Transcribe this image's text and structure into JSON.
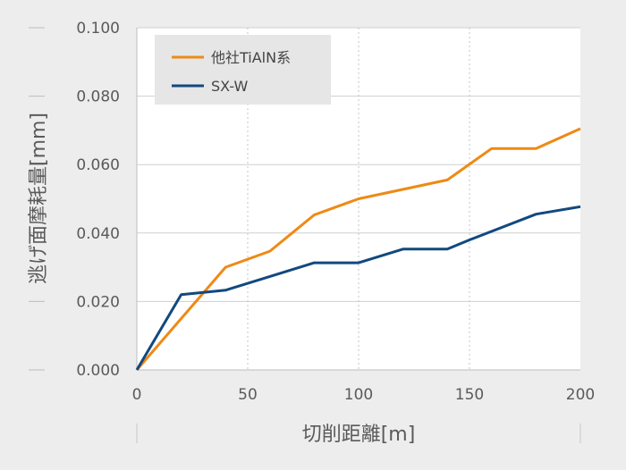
{
  "chart_data": {
    "type": "line",
    "xlabel": "切削距離[m]",
    "ylabel": "逃げ面摩耗量[mm]",
    "xlim": [
      0,
      200
    ],
    "ylim": [
      0,
      0.1
    ],
    "x_ticks": [
      "0",
      "50",
      "100",
      "150",
      "200"
    ],
    "y_ticks": [
      "0.000",
      "0.020",
      "0.040",
      "0.060",
      "0.080",
      "0.100"
    ],
    "grid": true,
    "legend_position": "top-left",
    "series": [
      {
        "name": "他社TiAlN系",
        "color": "#ee8a14",
        "points": [
          [
            0,
            0
          ],
          [
            40,
            0.03
          ],
          [
            60,
            0.0347
          ],
          [
            80,
            0.0453
          ],
          [
            100,
            0.05
          ],
          [
            140,
            0.0555
          ],
          [
            160,
            0.0647
          ],
          [
            180,
            0.0647
          ],
          [
            200,
            0.0705
          ]
        ]
      },
      {
        "name": "SX-W",
        "color": "#11497f",
        "points": [
          [
            0,
            0
          ],
          [
            20,
            0.022
          ],
          [
            40,
            0.0233
          ],
          [
            60,
            0.0273
          ],
          [
            80,
            0.0313
          ],
          [
            100,
            0.0313
          ],
          [
            120,
            0.0353
          ],
          [
            140,
            0.0353
          ],
          [
            150,
            0.038
          ],
          [
            180,
            0.0455
          ],
          [
            200,
            0.0477
          ]
        ]
      }
    ]
  }
}
